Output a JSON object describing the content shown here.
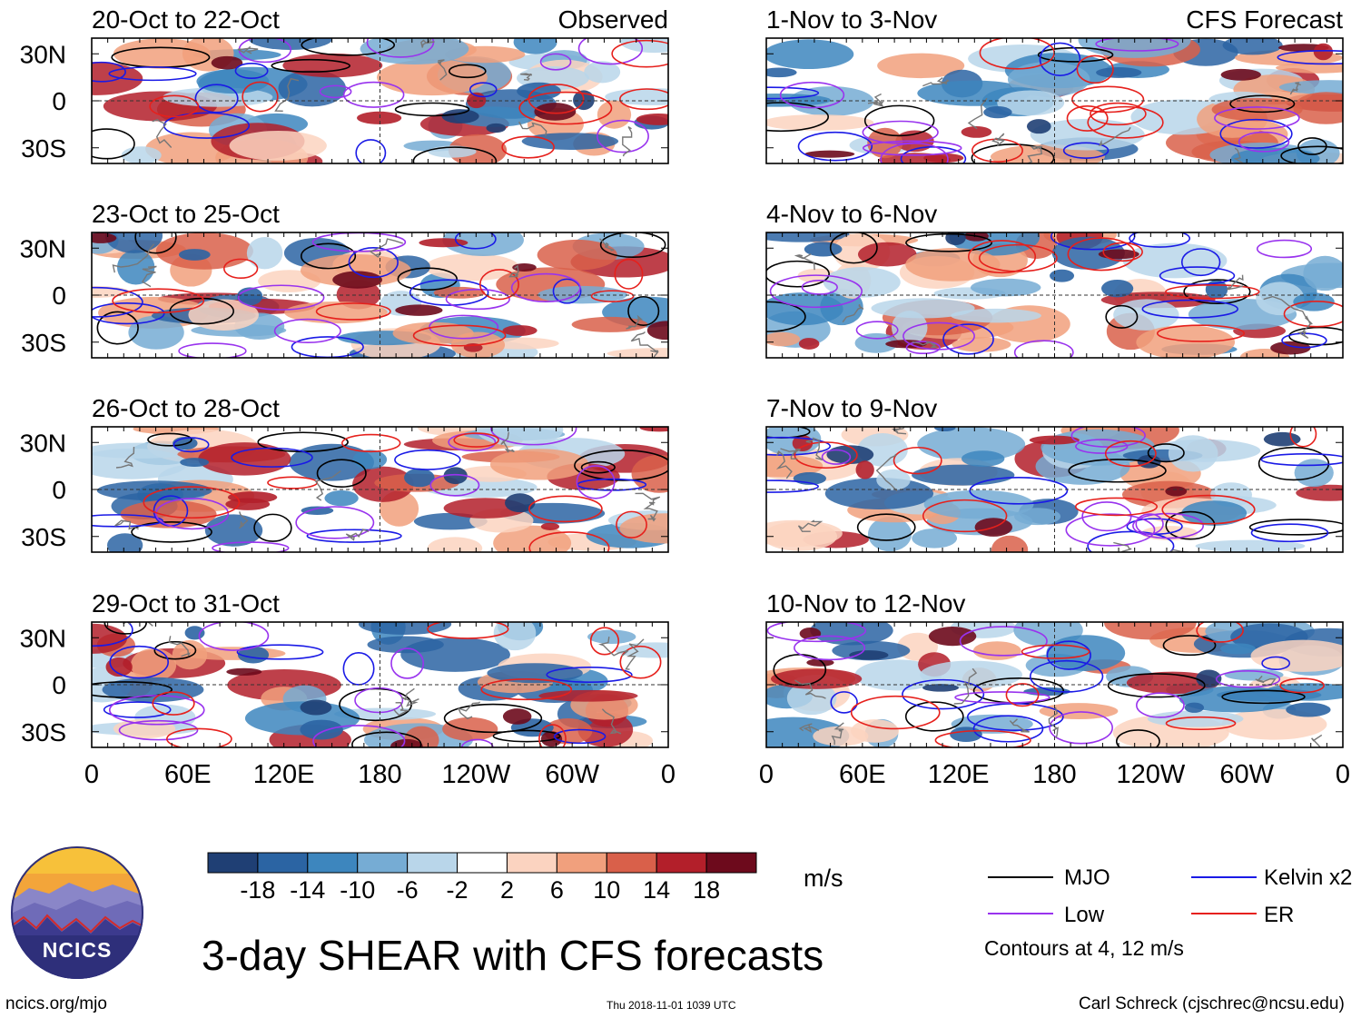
{
  "chart_data": {
    "type": "heatmap",
    "title": "3-day SHEAR with CFS forecasts",
    "variable": "SHEAR",
    "colorbar": {
      "unit": "m/s",
      "tick_labels": [
        "-18",
        "-14",
        "-10",
        "-6",
        "-2",
        "2",
        "6",
        "10",
        "14",
        "18"
      ],
      "colors": [
        "#1f3f74",
        "#2b64a3",
        "#3d86be",
        "#76acd4",
        "#b9d6ea",
        "#ffffff",
        "#fbd3c0",
        "#f1a07d",
        "#d9604a",
        "#b31f2a",
        "#6d0a1c"
      ]
    },
    "x_tick_labels": [
      "0",
      "60E",
      "120E",
      "180",
      "120W",
      "60W",
      "0"
    ],
    "y_tick_labels": [
      "30N",
      "0",
      "30S"
    ],
    "xlim_deg_east": [
      0,
      360
    ],
    "ylim_deg_north": [
      -40,
      40
    ],
    "columns": [
      {
        "corner_label": "Observed",
        "panels": [
          {
            "period": "20-Oct to 22-Oct"
          },
          {
            "period": "23-Oct to 25-Oct"
          },
          {
            "period": "26-Oct to 28-Oct"
          },
          {
            "period": "29-Oct to 31-Oct"
          }
        ]
      },
      {
        "corner_label": "CFS Forecast",
        "panels": [
          {
            "period": "1-Nov to 3-Nov"
          },
          {
            "period": "4-Nov to 6-Nov"
          },
          {
            "period": "7-Nov to 9-Nov"
          },
          {
            "period": "10-Nov to 12-Nov"
          }
        ]
      }
    ],
    "contour_legend": [
      {
        "name": "MJO",
        "color": "#000000"
      },
      {
        "name": "Kelvin x2",
        "color": "#1a1ae6"
      },
      {
        "name": "Low",
        "color": "#9933ee"
      },
      {
        "name": "ER",
        "color": "#e6201c"
      }
    ],
    "contour_note": "Contours at 4, 12 m/s"
  },
  "logo": {
    "text": "NCICS"
  },
  "footer": {
    "website": "ncics.org/mjo",
    "timestamp": "Thu 2018-11-01 1039 UTC",
    "credit": "Carl Schreck (cjschrec@ncsu.edu)"
  }
}
